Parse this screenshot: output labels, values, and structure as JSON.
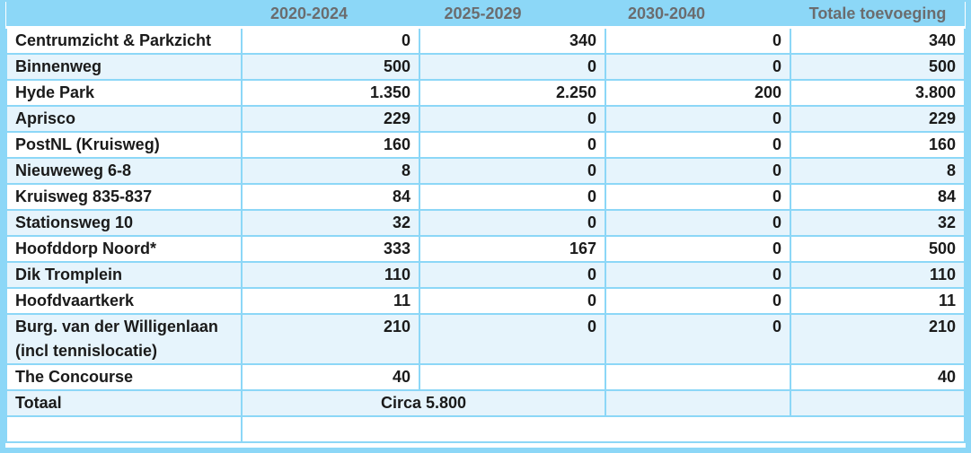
{
  "colors": {
    "sky": "#8cd7f7",
    "row-alt": "#e6f4fc",
    "hdr-text": "#6b6c6e",
    "body-text": "#1a1a1a"
  },
  "table": {
    "headers": [
      "",
      "2020-2024",
      "2025-2029",
      "2030-2040",
      "Totale toevoeging"
    ],
    "rows": [
      {
        "label": "Centrumzicht & Parkzicht",
        "p1": "0",
        "p2": "340",
        "p3": "0",
        "total": "340"
      },
      {
        "label": "Binnenweg",
        "p1": "500",
        "p2": "0",
        "p3": "0",
        "total": "500"
      },
      {
        "label": "Hyde Park",
        "p1": "1.350",
        "p2": "2.250",
        "p3": "200",
        "total": "3.800"
      },
      {
        "label": "Aprisco",
        "p1": "229",
        "p2": "0",
        "p3": "0",
        "total": "229"
      },
      {
        "label": "PostNL (Kruisweg)",
        "p1": "160",
        "p2": "0",
        "p3": "0",
        "total": "160"
      },
      {
        "label": "Nieuweweg 6-8",
        "p1": "8",
        "p2": "0",
        "p3": "0",
        "total": "8"
      },
      {
        "label": "Kruisweg 835-837",
        "p1": "84",
        "p2": "0",
        "p3": "0",
        "total": "84"
      },
      {
        "label": "Stationsweg 10",
        "p1": "32",
        "p2": "0",
        "p3": "0",
        "total": "32"
      },
      {
        "label": "Hoofddorp Noord*",
        "p1": "333",
        "p2": "167",
        "p3": "0",
        "total": "500"
      },
      {
        "label": "Dik Tromplein",
        "p1": "110",
        "p2": "0",
        "p3": "0",
        "total": "110"
      },
      {
        "label": "Hoofdvaartkerk",
        "p1": "11",
        "p2": "0",
        "p3": "0",
        "total": "11"
      },
      {
        "label": "Burg. van der Willigenlaan (incl tennislocatie)",
        "p1": "210",
        "p2": "0",
        "p3": "0",
        "total": "210"
      },
      {
        "label": "The Concourse",
        "p1": "40",
        "p2": "",
        "p3": "",
        "total": "40"
      }
    ],
    "total_row": {
      "label": "Totaal",
      "merged_value": "Circa 5.800"
    }
  }
}
